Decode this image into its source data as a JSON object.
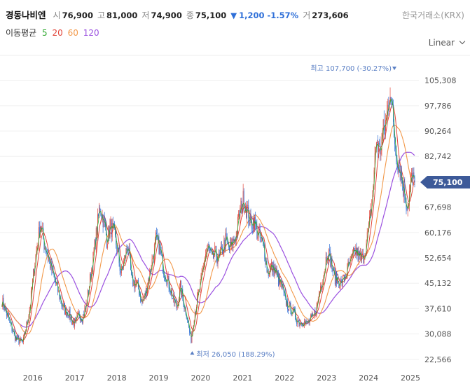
{
  "header": {
    "stock_name": "경동나비엔",
    "open_label": "시",
    "open": "76,900",
    "high_label": "고",
    "high": "81,000",
    "low_label": "저",
    "low": "74,900",
    "close_label": "종",
    "close": "75,100",
    "change_symbol": "▼",
    "change": "1,200 -1.57%",
    "volume_label": "거",
    "volume": "273,606",
    "exchange": "한국거래소(KRX)"
  },
  "ma_legend": {
    "title": "이동평균",
    "items": [
      {
        "label": "5",
        "color": "#33aa33"
      },
      {
        "label": "20",
        "color": "#e2463b"
      },
      {
        "label": "60",
        "color": "#f2994a"
      },
      {
        "label": "120",
        "color": "#9b51e0"
      }
    ]
  },
  "scale_button": {
    "label": "Linear"
  },
  "chart_data": {
    "type": "candlestick",
    "y_ticks": [
      "105,308",
      "97,786",
      "90,264",
      "82,742",
      "75,220",
      "67,698",
      "60,176",
      "52,654",
      "45,132",
      "37,610",
      "30,088",
      "22,566"
    ],
    "y_tick_values": [
      105308,
      97786,
      90264,
      82742,
      75220,
      67698,
      60176,
      52654,
      45132,
      37610,
      30088,
      22566
    ],
    "x_ticks": [
      "2016",
      "2017",
      "2018",
      "2019",
      "2020",
      "2021",
      "2022",
      "2023",
      "2024",
      "2025"
    ],
    "ylim": [
      19000,
      112500
    ],
    "last_price": {
      "label": "75,100",
      "value": 75100
    },
    "max_annotation": {
      "label": "최고 107,700 (-30.27%)",
      "value": 107700,
      "date": "2024-12"
    },
    "min_annotation": {
      "label": "최저 26,050 (188.29%)",
      "value": 26050,
      "date": "2020-03"
    },
    "up_color": "#e2463b",
    "down_color": "#2e6fd8",
    "close_series": [
      [
        "2015-09",
        40000
      ],
      [
        "2015-11",
        34000
      ],
      [
        "2016-01",
        28500
      ],
      [
        "2016-03",
        27500
      ],
      [
        "2016-05",
        38000
      ],
      [
        "2016-06",
        48000
      ],
      [
        "2016-07",
        56000
      ],
      [
        "2016-08",
        63000
      ],
      [
        "2016-09",
        57000
      ],
      [
        "2016-10",
        54000
      ],
      [
        "2016-11",
        50000
      ],
      [
        "2016-12",
        46000
      ],
      [
        "2017-01",
        43000
      ],
      [
        "2017-02",
        39000
      ],
      [
        "2017-03",
        37000
      ],
      [
        "2017-04",
        36500
      ],
      [
        "2017-05",
        34000
      ],
      [
        "2017-06",
        33000
      ],
      [
        "2017-07",
        36000
      ],
      [
        "2017-08",
        35000
      ],
      [
        "2017-09",
        38000
      ],
      [
        "2017-10",
        45000
      ],
      [
        "2017-11",
        52000
      ],
      [
        "2017-12",
        60000
      ],
      [
        "2018-01",
        68000
      ],
      [
        "2018-02",
        64000
      ],
      [
        "2018-03",
        58000
      ],
      [
        "2018-04",
        62000
      ],
      [
        "2018-05",
        60000
      ],
      [
        "2018-06",
        55000
      ],
      [
        "2018-07",
        48000
      ],
      [
        "2018-08",
        52000
      ],
      [
        "2018-09",
        57000
      ],
      [
        "2018-10",
        46000
      ],
      [
        "2018-11",
        45000
      ],
      [
        "2018-12",
        44000
      ],
      [
        "2019-01",
        39000
      ],
      [
        "2019-02",
        42000
      ],
      [
        "2019-03",
        47000
      ],
      [
        "2019-04",
        52000
      ],
      [
        "2019-05",
        58000
      ],
      [
        "2019-06",
        56000
      ],
      [
        "2019-07",
        50000
      ],
      [
        "2019-08",
        47000
      ],
      [
        "2019-09",
        44000
      ],
      [
        "2019-10",
        40000
      ],
      [
        "2019-11",
        38000
      ],
      [
        "2019-12",
        44000
      ],
      [
        "2020-01",
        39000
      ],
      [
        "2020-02",
        35000
      ],
      [
        "2020-03",
        28000
      ],
      [
        "2020-04",
        36000
      ],
      [
        "2020-05",
        41000
      ],
      [
        "2020-06",
        46000
      ],
      [
        "2020-07",
        53000
      ],
      [
        "2020-08",
        56000
      ],
      [
        "2020-09",
        52000
      ],
      [
        "2020-10",
        54000
      ],
      [
        "2020-11",
        52000
      ],
      [
        "2020-12",
        55000
      ],
      [
        "2021-01",
        58000
      ],
      [
        "2021-02",
        55000
      ],
      [
        "2021-03",
        57000
      ],
      [
        "2021-04",
        60000
      ],
      [
        "2021-05",
        66000
      ],
      [
        "2021-06",
        70000
      ],
      [
        "2021-07",
        67000
      ],
      [
        "2021-08",
        63000
      ],
      [
        "2021-09",
        64000
      ],
      [
        "2021-10",
        60000
      ],
      [
        "2021-11",
        58000
      ],
      [
        "2021-12",
        55000
      ],
      [
        "2022-01",
        48000
      ],
      [
        "2022-02",
        50000
      ],
      [
        "2022-03",
        49000
      ],
      [
        "2022-04",
        46000
      ],
      [
        "2022-05",
        44000
      ],
      [
        "2022-06",
        40000
      ],
      [
        "2022-07",
        38000
      ],
      [
        "2022-08",
        37000
      ],
      [
        "2022-09",
        35000
      ],
      [
        "2022-10",
        33500
      ],
      [
        "2022-11",
        34000
      ],
      [
        "2022-12",
        33000
      ],
      [
        "2023-01",
        34000
      ],
      [
        "2023-02",
        35000
      ],
      [
        "2023-03",
        38000
      ],
      [
        "2023-04",
        44000
      ],
      [
        "2023-05",
        48000
      ],
      [
        "2023-06",
        55000
      ],
      [
        "2023-07",
        52000
      ],
      [
        "2023-08",
        47000
      ],
      [
        "2023-09",
        46000
      ],
      [
        "2023-10",
        45000
      ],
      [
        "2023-11",
        47000
      ],
      [
        "2023-12",
        50000
      ],
      [
        "2024-01",
        52000
      ],
      [
        "2024-02",
        55000
      ],
      [
        "2024-03",
        53000
      ],
      [
        "2024-04",
        52000
      ],
      [
        "2024-05",
        56000
      ],
      [
        "2024-06",
        62000
      ],
      [
        "2024-07",
        72000
      ],
      [
        "2024-08",
        88000
      ],
      [
        "2024-09",
        84000
      ],
      [
        "2024-10",
        90000
      ],
      [
        "2024-11",
        94000
      ],
      [
        "2024-12",
        104000
      ],
      [
        "2025-01",
        90000
      ],
      [
        "2025-02",
        82000
      ],
      [
        "2025-03",
        78000
      ],
      [
        "2025-04",
        72000
      ],
      [
        "2025-05",
        68000
      ],
      [
        "2025-06",
        76000
      ],
      [
        "2025-07",
        75100
      ]
    ]
  }
}
